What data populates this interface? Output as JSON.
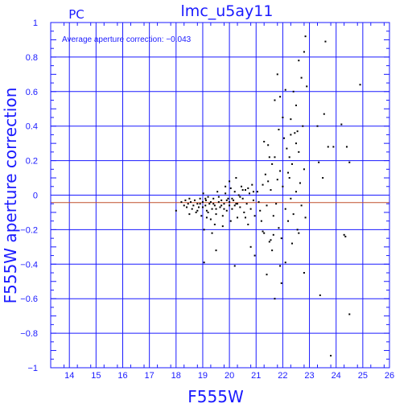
{
  "chart_data": {
    "type": "scatter",
    "title": "lmc_u5ay11",
    "subtitle": "PC",
    "annotation": "Average aperture correction: −0.043",
    "xlabel": "F555W",
    "ylabel": "F555W aperture correction",
    "xlim": [
      13.3,
      26
    ],
    "ylim": [
      -1,
      1
    ],
    "x_ticks": [
      "14",
      "15",
      "16",
      "17",
      "18",
      "19",
      "20",
      "21",
      "22",
      "23",
      "24",
      "25",
      "26"
    ],
    "y_ticks": [
      "−1",
      "−0.8",
      "−0.6",
      "−0.4",
      "−0.2",
      "0",
      "0.2",
      "0.4",
      "0.6",
      "0.8",
      "1"
    ],
    "grid": true,
    "reference_lines": [
      {
        "y": 0,
        "color": "#1a1aff"
      },
      {
        "y": -0.043,
        "color": "#c0502d"
      }
    ],
    "axis_color": "#1a1aff",
    "point_color": "#000000",
    "points": [
      [
        18.0,
        -0.09
      ],
      [
        18.2,
        -0.04
      ],
      [
        18.3,
        -0.06
      ],
      [
        18.35,
        -0.03
      ],
      [
        18.4,
        -0.07
      ],
      [
        18.45,
        -0.05
      ],
      [
        18.5,
        -0.11
      ],
      [
        18.55,
        -0.04
      ],
      [
        18.6,
        -0.08
      ],
      [
        18.65,
        -0.06
      ],
      [
        18.7,
        -0.03
      ],
      [
        18.75,
        -0.1
      ],
      [
        18.8,
        -0.05
      ],
      [
        18.85,
        -0.07
      ],
      [
        18.9,
        -0.02
      ],
      [
        18.95,
        -0.12
      ],
      [
        19.0,
        -0.04
      ],
      [
        19.02,
        0.01
      ],
      [
        19.05,
        -0.2
      ],
      [
        19.1,
        -0.06
      ],
      [
        19.12,
        -0.03
      ],
      [
        19.15,
        -0.09
      ],
      [
        19.2,
        -0.01
      ],
      [
        19.25,
        -0.05
      ],
      [
        19.3,
        -0.14
      ],
      [
        19.35,
        -0.08
      ],
      [
        19.4,
        -0.02
      ],
      [
        19.45,
        -0.06
      ],
      [
        19.5,
        -0.11
      ],
      [
        19.55,
        0.02
      ],
      [
        19.6,
        -0.04
      ],
      [
        19.65,
        -0.07
      ],
      [
        19.7,
        -0.03
      ],
      [
        19.75,
        -0.12
      ],
      [
        19.8,
        -0.05
      ],
      [
        19.85,
        0.01
      ],
      [
        19.9,
        -0.09
      ],
      [
        19.95,
        -0.02
      ],
      [
        20.0,
        -0.06
      ],
      [
        20.05,
        0.04
      ],
      [
        20.1,
        -0.08
      ],
      [
        20.15,
        -0.03
      ],
      [
        20.2,
        0.02
      ],
      [
        20.25,
        -0.05
      ],
      [
        20.3,
        -0.13
      ],
      [
        20.35,
        0.0
      ],
      [
        20.4,
        -0.07
      ],
      [
        20.45,
        0.05
      ],
      [
        20.5,
        -0.02
      ],
      [
        20.55,
        -0.1
      ],
      [
        20.6,
        0.03
      ],
      [
        20.65,
        -0.05
      ],
      [
        20.7,
        -0.17
      ],
      [
        20.75,
        0.01
      ],
      [
        20.8,
        -0.08
      ],
      [
        20.85,
        0.06
      ],
      [
        20.9,
        -0.03
      ],
      [
        20.95,
        -0.12
      ],
      [
        18.5,
        -0.02
      ],
      [
        18.8,
        -0.09
      ],
      [
        19.0,
        -0.07
      ],
      [
        19.2,
        -0.1
      ],
      [
        19.4,
        -0.05
      ],
      [
        19.6,
        -0.01
      ],
      [
        19.8,
        -0.08
      ],
      [
        20.0,
        -0.04
      ],
      [
        20.2,
        -0.06
      ],
      [
        20.4,
        -0.01
      ],
      [
        19.1,
        -0.02
      ],
      [
        19.3,
        -0.04
      ],
      [
        19.7,
        -0.06
      ],
      [
        19.9,
        -0.03
      ],
      [
        20.1,
        -0.02
      ],
      [
        20.3,
        -0.05
      ],
      [
        19.5,
        -0.08
      ],
      [
        18.9,
        -0.05
      ],
      [
        19.15,
        -0.13
      ],
      [
        19.45,
        -0.17
      ],
      [
        19.75,
        -0.18
      ],
      [
        20.05,
        -0.15
      ],
      [
        19.35,
        -0.22
      ],
      [
        20.6,
        -0.13
      ],
      [
        20.8,
        -0.3
      ],
      [
        19.5,
        -0.32
      ],
      [
        20.25,
        0.1
      ],
      [
        20.5,
        0.03
      ],
      [
        20.7,
        0.04
      ],
      [
        20.9,
        0.02
      ],
      [
        20.0,
        0.08
      ],
      [
        19.85,
        0.05
      ],
      [
        19.05,
        -0.39
      ],
      [
        20.2,
        -0.41
      ],
      [
        20.95,
        -0.35
      ],
      [
        21.05,
        0.02
      ],
      [
        21.1,
        -0.04
      ],
      [
        21.15,
        -0.09
      ],
      [
        21.2,
        -0.15
      ],
      [
        21.25,
        0.06
      ],
      [
        21.3,
        -0.22
      ],
      [
        21.35,
        0.12
      ],
      [
        21.4,
        -0.06
      ],
      [
        21.45,
        0.08
      ],
      [
        21.5,
        -0.27
      ],
      [
        21.55,
        0.03
      ],
      [
        21.6,
        0.18
      ],
      [
        21.65,
        -0.12
      ],
      [
        21.7,
        0.22
      ],
      [
        21.75,
        -0.05
      ],
      [
        21.8,
        0.09
      ],
      [
        21.85,
        -0.19
      ],
      [
        21.9,
        0.14
      ],
      [
        21.95,
        -0.25
      ],
      [
        22.0,
        0.05
      ],
      [
        22.05,
        0.33
      ],
      [
        22.1,
        -0.08
      ],
      [
        22.15,
        0.27
      ],
      [
        22.2,
        -0.15
      ],
      [
        22.25,
        0.1
      ],
      [
        22.3,
        -0.02
      ],
      [
        22.35,
        0.18
      ],
      [
        22.4,
        -0.11
      ],
      [
        22.45,
        0.36
      ],
      [
        22.5,
        0.02
      ],
      [
        22.55,
        -0.2
      ],
      [
        22.6,
        0.25
      ],
      [
        22.65,
        0.07
      ],
      [
        22.7,
        -0.06
      ],
      [
        22.75,
        0.4
      ],
      [
        22.8,
        0.15
      ],
      [
        22.85,
        -0.13
      ],
      [
        21.3,
        0.31
      ],
      [
        21.5,
        0.22
      ],
      [
        21.7,
        0.55
      ],
      [
        21.8,
        0.7
      ],
      [
        21.9,
        0.57
      ],
      [
        22.1,
        0.61
      ],
      [
        22.3,
        0.44
      ],
      [
        22.5,
        0.52
      ],
      [
        22.6,
        0.78
      ],
      [
        22.7,
        0.68
      ],
      [
        22.8,
        0.83
      ],
      [
        22.85,
        0.92
      ],
      [
        22.9,
        0.63
      ],
      [
        22.3,
        0.35
      ],
      [
        22.5,
        0.3
      ],
      [
        21.6,
        -0.32
      ],
      [
        21.9,
        -0.41
      ],
      [
        21.4,
        -0.46
      ],
      [
        21.7,
        -0.6
      ],
      [
        21.95,
        -0.51
      ],
      [
        22.1,
        -0.39
      ],
      [
        22.6,
        -0.22
      ],
      [
        22.8,
        -0.45
      ],
      [
        21.55,
        -0.26
      ],
      [
        21.65,
        -0.23
      ],
      [
        22.2,
        0.13
      ],
      [
        22.35,
        -0.28
      ],
      [
        22.0,
        0.45
      ],
      [
        22.4,
        0.6
      ],
      [
        21.25,
        -0.21
      ],
      [
        23.3,
        0.4
      ],
      [
        23.5,
        0.1
      ],
      [
        23.7,
        0.28
      ],
      [
        23.9,
        0.28
      ],
      [
        24.2,
        0.41
      ],
      [
        24.4,
        0.28
      ],
      [
        24.5,
        0.19
      ],
      [
        24.9,
        0.64
      ],
      [
        24.3,
        -0.23
      ],
      [
        24.35,
        -0.24
      ],
      [
        23.4,
        -0.58
      ],
      [
        24.5,
        -0.69
      ],
      [
        23.8,
        -0.93
      ],
      [
        23.6,
        0.89
      ],
      [
        23.35,
        0.19
      ],
      [
        23.55,
        0.47
      ],
      [
        21.85,
        0.38
      ],
      [
        22.25,
        0.22
      ],
      [
        22.55,
        0.37
      ],
      [
        21.45,
        0.29
      ]
    ]
  }
}
